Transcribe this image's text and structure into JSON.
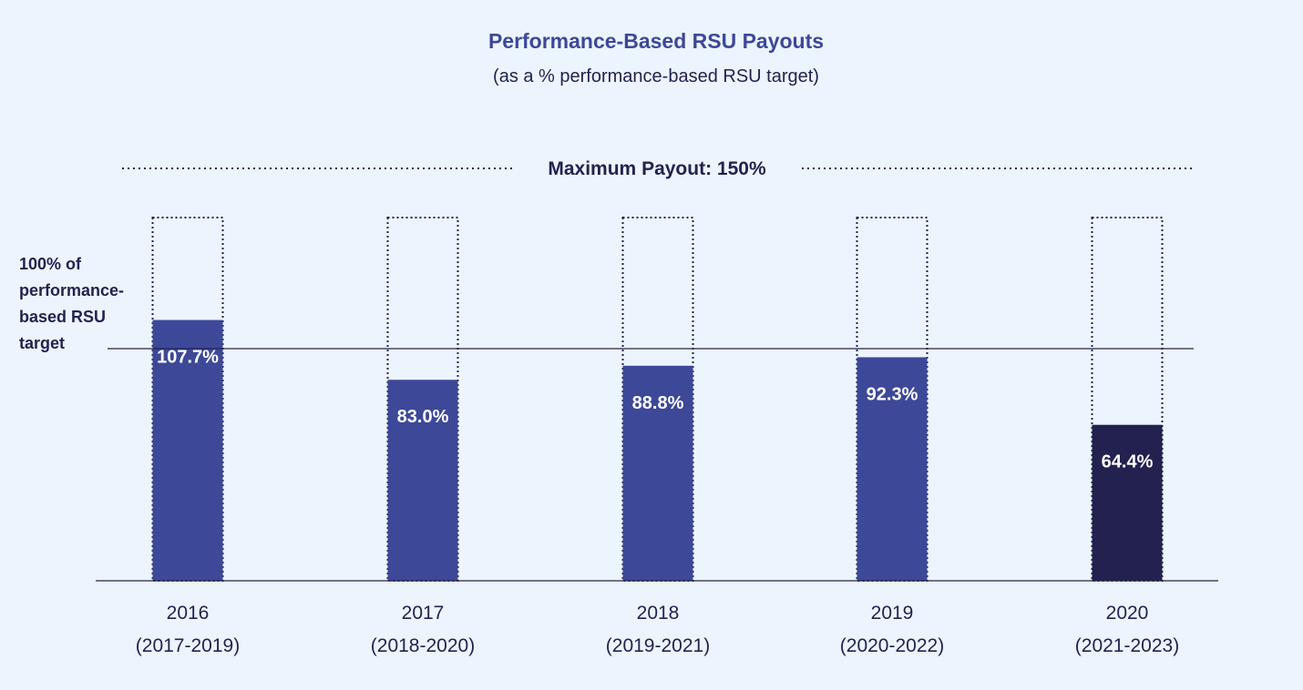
{
  "chart_data": {
    "type": "bar",
    "title": "Performance-Based RSU Payouts",
    "subtitle": "(as a % performance-based RSU target)",
    "max_label": "Maximum Payout: 150%",
    "max_value": 150,
    "reference_value": 100,
    "reference_label_lines": [
      "100% of",
      "performance-",
      "based RSU",
      "target"
    ],
    "ylim": [
      0,
      150
    ],
    "xlabel": "",
    "ylabel": "",
    "categories": [
      {
        "year": "2016",
        "period": "(2017-2019)"
      },
      {
        "year": "2017",
        "period": "(2018-2020)"
      },
      {
        "year": "2018",
        "period": "(2019-2021)"
      },
      {
        "year": "2019",
        "period": "(2020-2022)"
      },
      {
        "year": "2020",
        "period": "(2021-2023)"
      }
    ],
    "series": [
      {
        "name": "Payout",
        "values": [
          107.7,
          83.0,
          88.8,
          92.3,
          64.4
        ],
        "labels": [
          "107.7%",
          "83.0%",
          "88.8%",
          "92.3%",
          "64.4%"
        ],
        "colors": [
          "#3d4898",
          "#3d4898",
          "#3d4898",
          "#3d4898",
          "#22214f"
        ]
      }
    ]
  },
  "colors": {
    "background": "#ecf4fd",
    "title": "#3d4898",
    "text": "#22234f",
    "bar": "#3d4898",
    "bar_highlight": "#22214f",
    "bar_label": "#ffffff"
  }
}
